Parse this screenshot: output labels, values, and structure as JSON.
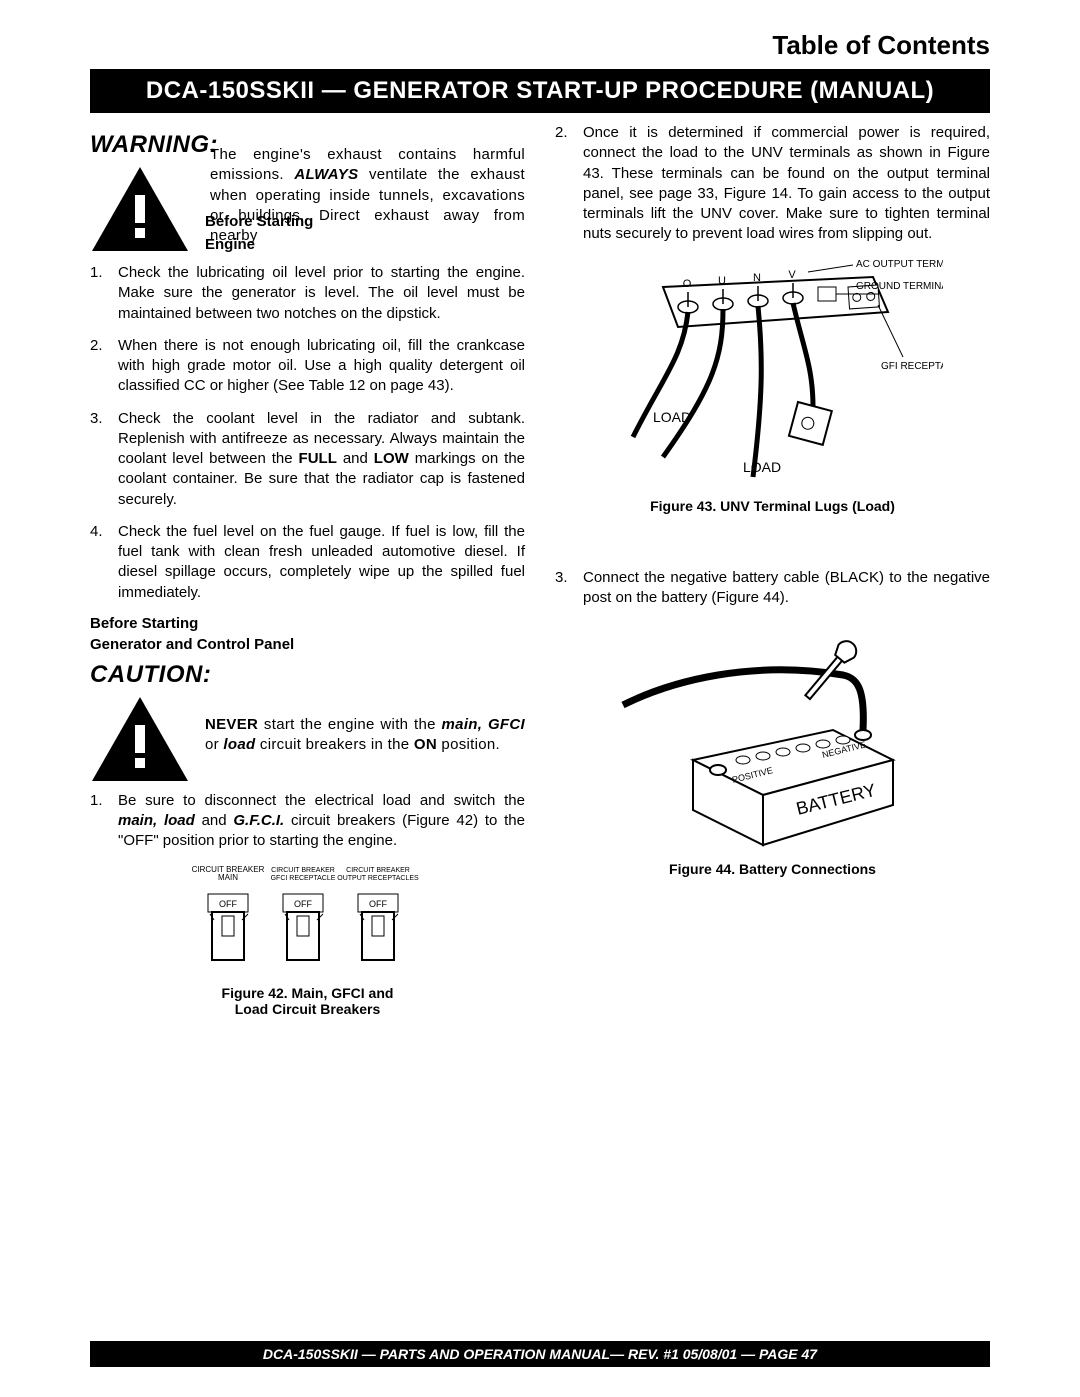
{
  "toc": "Table of Contents",
  "title": "DCA-150SSKII — GENERATOR START-UP PROCEDURE (MANUAL)",
  "left": {
    "warning_heading": "WARNING:",
    "warning_text_pre": "The engine's exhaust contains harmful emissions. ",
    "warning_always": "ALWAYS",
    "warning_text_post": " ventilate the exhaust when operating inside tunnels, excavations or buildings. Direct exhaust away from nearby",
    "subhead1a": "Before Starting",
    "subhead1b": "Engine",
    "engine_steps": [
      "Check the lubricating oil level prior to starting the engine. Make sure the generator is level. The oil level must be maintained between two notches on the dipstick.",
      "When there is not enough lubricating oil, fill the crankcase with high grade motor oil. Use a high quality detergent oil classified CC or higher (See Table 12 on page 43).",
      "Check the coolant level in the radiator and subtank. Replenish with antifreeze as necessary. Always maintain the coolant level between the <b>FULL</b> and <b>LOW</b> markings on the coolant container. Be sure that the radiator cap is fastened securely.",
      "Check the fuel level on the fuel gauge. If fuel is low, fill the fuel tank with clean fresh unleaded automotive diesel. If diesel spillage occurs, completely wipe up the spilled fuel immediately."
    ],
    "subhead2a": "Before Starting",
    "subhead2b": "Generator and Control Panel",
    "caution_heading": "CAUTION:",
    "caution_text": "<b>NEVER</b> start the engine with the <span class=\"bi\">main, GFCI</span> or <span class=\"bi\">load</span> circuit breakers in the <b>ON</b> position.",
    "panel_steps": [
      "Be sure to disconnect the electrical load and switch the <span class=\"bi\">main, load</span> and <span class=\"bi\">G.F.C.I.</span> circuit breakers (Figure 42) to the \"OFF\" position prior to starting the engine."
    ],
    "breaker_labels": {
      "a1": "CIRCUIT BREAKER",
      "a2": "MAIN",
      "b1": "CIRCUIT BREAKER",
      "b2": "GFCI RECEPTACLE",
      "c1": "CIRCUIT BREAKER",
      "c2": "OUTPUT RECEPTACLES",
      "off": "OFF"
    },
    "fig42": "Figure 42.  Main, GFCI and\nLoad Circuit Breakers"
  },
  "right": {
    "step2": "Once it is determined if commercial power is required, connect the load to the UNV terminals as shown in Figure 43. These terminals can be found on the output terminal panel, see page 33, Figure 14. To gain access to the output terminals lift the UNV cover. Make sure to tighten terminal nuts securely to prevent load wires from slipping out.",
    "fig43_labels": {
      "ac": "AC OUTPUT TERMINALS",
      "gnd": "GROUND TERMINAL",
      "gfi": "GFI RECEPTACLE",
      "load1": "LOAD",
      "load2": "LOAD",
      "o": "O",
      "u": "U",
      "n": "N",
      "v": "V"
    },
    "fig43": "Figure 43.  UNV Terminal Lugs (Load)",
    "step3": "Connect the negative battery cable (BLACK) to the negative post on the battery (Figure 44).",
    "fig44_labels": {
      "pos": "POSITIVE",
      "neg": "NEGATIVE",
      "bat": "BATTERY"
    },
    "fig44": "Figure 44. Battery Connections"
  },
  "footer": "DCA-150SSKII — PARTS AND OPERATION MANUAL— REV. #1  05/08/01 — PAGE 47"
}
